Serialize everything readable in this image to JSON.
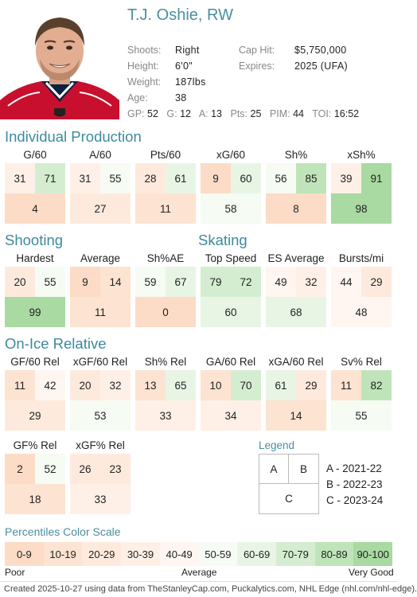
{
  "player": {
    "name": "T.J. Oshie, RW",
    "info": [
      {
        "label": "Shoots:",
        "value": "Right"
      },
      {
        "label": "Height:",
        "value": "6'0\""
      },
      {
        "label": "Weight:",
        "value": "187lbs"
      },
      {
        "label": "Age:",
        "value": "38"
      }
    ],
    "contract": [
      {
        "label": "Cap Hit:",
        "value": "$5,750,000"
      },
      {
        "label": "Expires:",
        "value": "2025 (UFA)"
      }
    ],
    "stat_line": [
      {
        "label": "GP:",
        "value": "52"
      },
      {
        "label": "G:",
        "value": "12"
      },
      {
        "label": "A:",
        "value": "13"
      },
      {
        "label": "Pts:",
        "value": "25"
      },
      {
        "label": "PIM:",
        "value": "44"
      },
      {
        "label": "TOI:",
        "value": "16:52"
      }
    ]
  },
  "sections": [
    {
      "title": "Individual Production",
      "stats": [
        {
          "label": "G/60",
          "a": 31,
          "b": 71,
          "c": 4
        },
        {
          "label": "A/60",
          "a": 31,
          "b": 55,
          "c": 27
        },
        {
          "label": "Pts/60",
          "a": 28,
          "b": 61,
          "c": 11
        },
        {
          "label": "xG/60",
          "a": 9,
          "b": 60,
          "c": 58
        },
        {
          "label": "Sh%",
          "a": 56,
          "b": 85,
          "c": 8
        },
        {
          "label": "xSh%",
          "a": 39,
          "b": 91,
          "c": 98
        }
      ]
    },
    {
      "title": "Shooting",
      "stats": [
        {
          "label": "Hardest",
          "a": 20,
          "b": 55,
          "c": 99
        },
        {
          "label": "Average",
          "a": 9,
          "b": 14,
          "c": 11
        },
        {
          "label": "Sh%AE",
          "a": 59,
          "b": 67,
          "c": 0
        }
      ]
    },
    {
      "title": "Skating",
      "stats": [
        {
          "label": "Top Speed",
          "a": 79,
          "b": 72,
          "c": 60
        },
        {
          "label": "ES Average",
          "a": 49,
          "b": 32,
          "c": 68
        },
        {
          "label": "Bursts/mi",
          "a": 44,
          "b": 29,
          "c": 48
        }
      ]
    },
    {
      "title": "On-Ice Relative",
      "stats": [
        {
          "label": "GF/60 Rel",
          "a": 11,
          "b": 42,
          "c": 29
        },
        {
          "label": "xGF/60 Rel",
          "a": 20,
          "b": 32,
          "c": 53
        },
        {
          "label": "Sh% Rel",
          "a": 13,
          "b": 65,
          "c": 33
        },
        {
          "label": "GA/60 Rel",
          "a": 10,
          "b": 70,
          "c": 34
        },
        {
          "label": "xGA/60 Rel",
          "a": 61,
          "b": 29,
          "c": 14
        },
        {
          "label": "Sv% Rel",
          "a": 11,
          "b": 82,
          "c": 55
        },
        {
          "label": "GF% Rel",
          "a": 2,
          "b": 52,
          "c": 18
        },
        {
          "label": "xGF% Rel",
          "a": 26,
          "b": 23,
          "c": 33
        }
      ]
    }
  ],
  "legend": {
    "title": "Legend",
    "cells": {
      "a": "A",
      "b": "B",
      "c": "C"
    },
    "lines": [
      "A - 2021-22",
      "B - 2022-23",
      "C - 2023-24"
    ]
  },
  "scale": {
    "title": "Percentiles Color Scale",
    "buckets": [
      "0-9",
      "10-19",
      "20-29",
      "30-39",
      "40-49",
      "50-59",
      "60-69",
      "70-79",
      "80-89",
      "90-100"
    ],
    "colors": [
      "#fcdcc6",
      "#fde3d1",
      "#feeadd",
      "#fff0e7",
      "#fff6f1",
      "#f6fbf4",
      "#e8f5e5",
      "#d4edd0",
      "#bfe4b9",
      "#a8daa1"
    ],
    "poor": "Poor",
    "average": "Average",
    "very_good": "Very Good"
  },
  "footer": "Created 2025-10-27 using data from TheStanleyCap.com, Puckalytics.com, NHL Edge (nhl.com/nhl-edge)."
}
